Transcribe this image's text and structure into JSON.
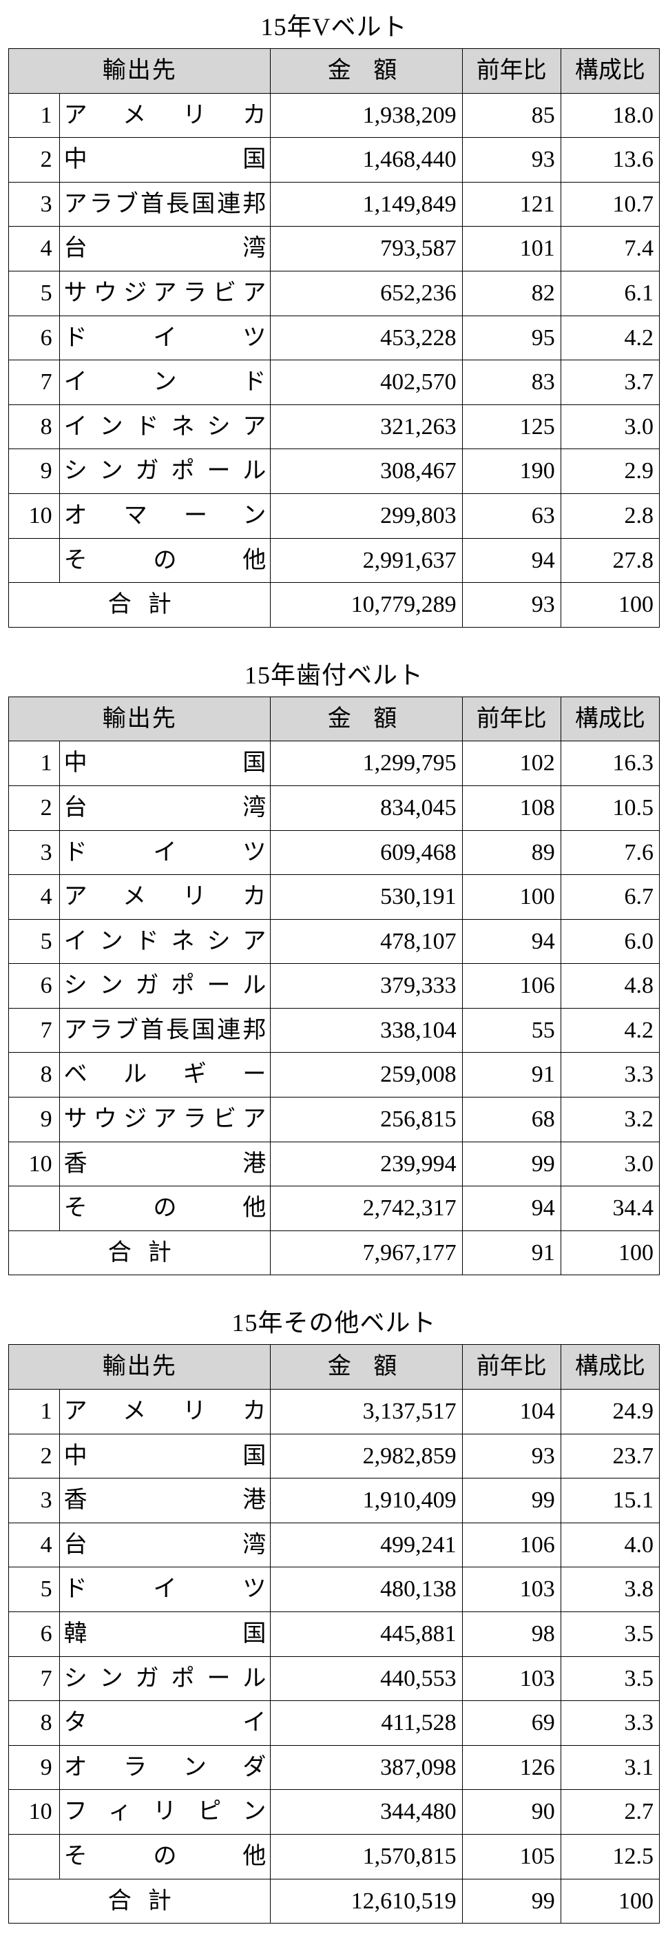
{
  "headers": {
    "destination": "輸出先",
    "amount": "金 額",
    "yoy": "前年比",
    "ratio": "構成比"
  },
  "other_label": "その他",
  "total_label": "合計",
  "tables": [
    {
      "title": "15年Vベルト",
      "rows": [
        {
          "rank": "1",
          "dest": "アメリカ",
          "amount": "1,938,209",
          "yoy": "85",
          "ratio": "18.0"
        },
        {
          "rank": "2",
          "dest": "中国",
          "amount": "1,468,440",
          "yoy": "93",
          "ratio": "13.6"
        },
        {
          "rank": "3",
          "dest": "アラブ首長国連邦",
          "amount": "1,149,849",
          "yoy": "121",
          "ratio": "10.7",
          "fill": true
        },
        {
          "rank": "4",
          "dest": "台湾",
          "amount": "793,587",
          "yoy": "101",
          "ratio": "7.4"
        },
        {
          "rank": "5",
          "dest": "サウジアラビア",
          "amount": "652,236",
          "yoy": "82",
          "ratio": "6.1",
          "fill": true
        },
        {
          "rank": "6",
          "dest": "ドイツ",
          "amount": "453,228",
          "yoy": "95",
          "ratio": "4.2"
        },
        {
          "rank": "7",
          "dest": "インド",
          "amount": "402,570",
          "yoy": "83",
          "ratio": "3.7"
        },
        {
          "rank": "8",
          "dest": "インドネシア",
          "amount": "321,263",
          "yoy": "125",
          "ratio": "3.0",
          "fill": true
        },
        {
          "rank": "9",
          "dest": "シンガポール",
          "amount": "308,467",
          "yoy": "190",
          "ratio": "2.9",
          "fill": true
        },
        {
          "rank": "10",
          "dest": "オマーン",
          "amount": "299,803",
          "yoy": "63",
          "ratio": "2.8"
        }
      ],
      "other": {
        "amount": "2,991,637",
        "yoy": "94",
        "ratio": "27.8"
      },
      "total": {
        "amount": "10,779,289",
        "yoy": "93",
        "ratio": "100"
      }
    },
    {
      "title": "15年歯付ベルト",
      "rows": [
        {
          "rank": "1",
          "dest": "中国",
          "amount": "1,299,795",
          "yoy": "102",
          "ratio": "16.3"
        },
        {
          "rank": "2",
          "dest": "台湾",
          "amount": "834,045",
          "yoy": "108",
          "ratio": "10.5"
        },
        {
          "rank": "3",
          "dest": "ドイツ",
          "amount": "609,468",
          "yoy": "89",
          "ratio": "7.6"
        },
        {
          "rank": "4",
          "dest": "アメリカ",
          "amount": "530,191",
          "yoy": "100",
          "ratio": "6.7"
        },
        {
          "rank": "5",
          "dest": "インドネシア",
          "amount": "478,107",
          "yoy": "94",
          "ratio": "6.0",
          "fill": true
        },
        {
          "rank": "6",
          "dest": "シンガポール",
          "amount": "379,333",
          "yoy": "106",
          "ratio": "4.8",
          "fill": true
        },
        {
          "rank": "7",
          "dest": "アラブ首長国連邦",
          "amount": "338,104",
          "yoy": "55",
          "ratio": "4.2",
          "fill": true
        },
        {
          "rank": "8",
          "dest": "ベルギー",
          "amount": "259,008",
          "yoy": "91",
          "ratio": "3.3"
        },
        {
          "rank": "9",
          "dest": "サウジアラビア",
          "amount": "256,815",
          "yoy": "68",
          "ratio": "3.2",
          "fill": true
        },
        {
          "rank": "10",
          "dest": "香港",
          "amount": "239,994",
          "yoy": "99",
          "ratio": "3.0"
        }
      ],
      "other": {
        "amount": "2,742,317",
        "yoy": "94",
        "ratio": "34.4"
      },
      "total": {
        "amount": "7,967,177",
        "yoy": "91",
        "ratio": "100"
      }
    },
    {
      "title": "15年その他ベルト",
      "rows": [
        {
          "rank": "1",
          "dest": "アメリカ",
          "amount": "3,137,517",
          "yoy": "104",
          "ratio": "24.9"
        },
        {
          "rank": "2",
          "dest": "中国",
          "amount": "2,982,859",
          "yoy": "93",
          "ratio": "23.7"
        },
        {
          "rank": "3",
          "dest": "香港",
          "amount": "1,910,409",
          "yoy": "99",
          "ratio": "15.1"
        },
        {
          "rank": "4",
          "dest": "台湾",
          "amount": "499,241",
          "yoy": "106",
          "ratio": "4.0"
        },
        {
          "rank": "5",
          "dest": "ドイツ",
          "amount": "480,138",
          "yoy": "103",
          "ratio": "3.8"
        },
        {
          "rank": "6",
          "dest": "韓国",
          "amount": "445,881",
          "yoy": "98",
          "ratio": "3.5"
        },
        {
          "rank": "7",
          "dest": "シンガポール",
          "amount": "440,553",
          "yoy": "103",
          "ratio": "3.5",
          "fill": true
        },
        {
          "rank": "8",
          "dest": "タイ",
          "amount": "411,528",
          "yoy": "69",
          "ratio": "3.3"
        },
        {
          "rank": "9",
          "dest": "オランダ",
          "amount": "387,098",
          "yoy": "126",
          "ratio": "3.1"
        },
        {
          "rank": "10",
          "dest": "フィリピン",
          "amount": "344,480",
          "yoy": "90",
          "ratio": "2.7",
          "fill": true
        }
      ],
      "other": {
        "amount": "1,570,815",
        "yoy": "105",
        "ratio": "12.5"
      },
      "total": {
        "amount": "12,610,519",
        "yoy": "99",
        "ratio": "100"
      }
    }
  ]
}
